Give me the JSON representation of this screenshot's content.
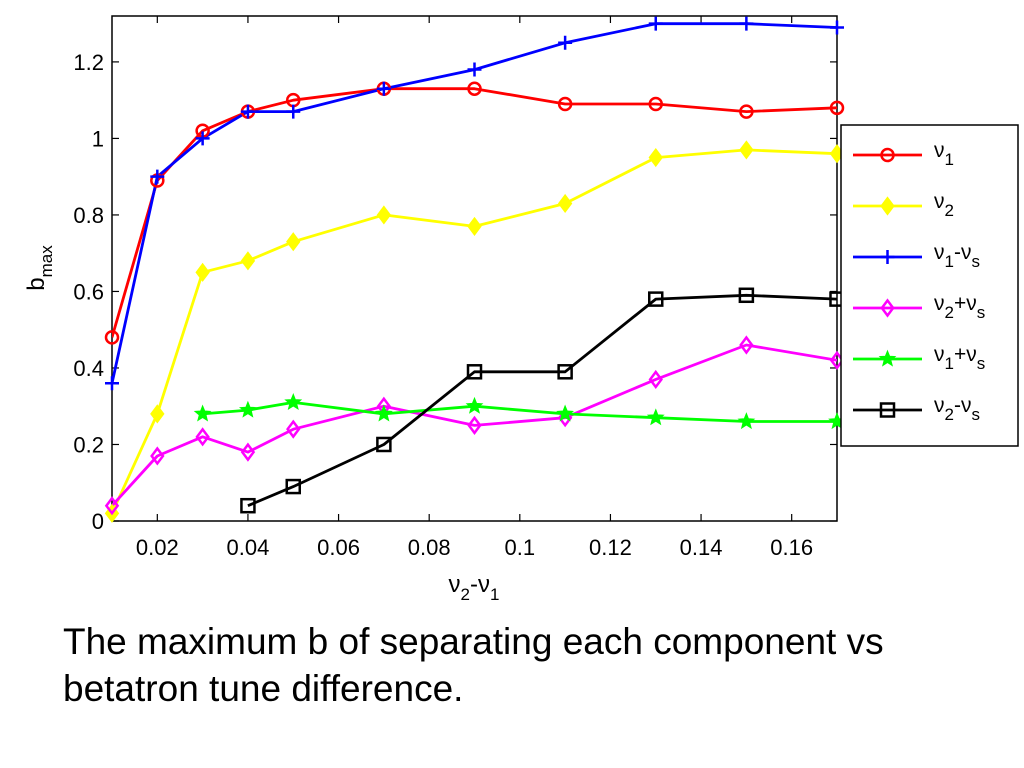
{
  "caption": "The maximum b of separating each component vs betatron tune difference.",
  "chart_data": {
    "type": "line",
    "xlabel": {
      "base": "ν",
      "sub1": "2",
      "mid": "-ν",
      "sub2": "1"
    },
    "ylabel": {
      "base": "b",
      "sub": "max"
    },
    "xlim": [
      0.01,
      0.17
    ],
    "ylim": [
      0,
      1.3
    ],
    "xticks": [
      0.02,
      0.04,
      0.06,
      0.08,
      0.1,
      0.12,
      0.14,
      0.16
    ],
    "xtick_labels": [
      "0.02",
      "0.04",
      "0.06",
      "0.08",
      "0.1",
      "0.12",
      "0.14",
      "0.16"
    ],
    "yticks": [
      0,
      0.2,
      0.4,
      0.6,
      0.8,
      1,
      1.2
    ],
    "ytick_labels": [
      "0",
      "0.2",
      "0.4",
      "0.6",
      "0.8",
      "1",
      "1.2"
    ],
    "legend_position": "outside-right",
    "series": [
      {
        "key": "v1",
        "name": "ν1",
        "label": {
          "base": "ν",
          "s1": "1",
          "op": "",
          "s2": ""
        },
        "color": "#ff0000",
        "marker": "circle",
        "x": [
          0.01,
          0.02,
          0.03,
          0.04,
          0.05,
          0.07,
          0.09,
          0.11,
          0.13,
          0.15,
          0.17
        ],
        "y": [
          0.48,
          0.89,
          1.02,
          1.07,
          1.1,
          1.13,
          1.13,
          1.09,
          1.09,
          1.07,
          1.08
        ]
      },
      {
        "key": "v2",
        "name": "ν2",
        "label": {
          "base": "ν",
          "s1": "2",
          "op": "",
          "s2": ""
        },
        "color": "#ffff00",
        "marker": "diamond-filled",
        "x": [
          0.01,
          0.02,
          0.03,
          0.04,
          0.05,
          0.07,
          0.09,
          0.11,
          0.13,
          0.15,
          0.17
        ],
        "y": [
          0.02,
          0.28,
          0.65,
          0.68,
          0.73,
          0.8,
          0.77,
          0.83,
          0.95,
          0.97,
          0.96
        ]
      },
      {
        "key": "v1mvs",
        "name": "ν1-νs",
        "label": {
          "base": "ν",
          "s1": "1",
          "op": "-ν",
          "s2": "s"
        },
        "color": "#0000ff",
        "marker": "plus",
        "x": [
          0.01,
          0.02,
          0.03,
          0.04,
          0.05,
          0.07,
          0.09,
          0.11,
          0.13,
          0.15,
          0.17
        ],
        "y": [
          0.36,
          0.9,
          1.0,
          1.07,
          1.07,
          1.13,
          1.18,
          1.25,
          1.3,
          1.3,
          1.29
        ]
      },
      {
        "key": "v2pvs",
        "name": "ν2+νs",
        "label": {
          "base": "ν",
          "s1": "2",
          "op": "+ν",
          "s2": "s"
        },
        "color": "#ff00ff",
        "marker": "diamond",
        "x": [
          0.01,
          0.02,
          0.03,
          0.04,
          0.05,
          0.07,
          0.09,
          0.11,
          0.13,
          0.15,
          0.17
        ],
        "y": [
          0.04,
          0.17,
          0.22,
          0.18,
          0.24,
          0.3,
          0.25,
          0.27,
          0.37,
          0.46,
          0.42
        ]
      },
      {
        "key": "v1pvs",
        "name": "ν1+νs",
        "label": {
          "base": "ν",
          "s1": "1",
          "op": "+ν",
          "s2": "s"
        },
        "color": "#00ff00",
        "marker": "star",
        "x": [
          0.03,
          0.04,
          0.05,
          0.07,
          0.09,
          0.11,
          0.13,
          0.15,
          0.17
        ],
        "y": [
          0.28,
          0.29,
          0.31,
          0.28,
          0.3,
          0.28,
          0.27,
          0.26,
          0.26
        ]
      },
      {
        "key": "v2mvs",
        "name": "ν2-νs",
        "label": {
          "base": "ν",
          "s1": "2",
          "op": "-ν",
          "s2": "s"
        },
        "color": "#000000",
        "marker": "square",
        "x": [
          0.04,
          0.05,
          0.07,
          0.09,
          0.11,
          0.13,
          0.15,
          0.17
        ],
        "y": [
          0.04,
          0.09,
          0.2,
          0.39,
          0.39,
          0.58,
          0.59,
          0.58
        ]
      }
    ]
  }
}
